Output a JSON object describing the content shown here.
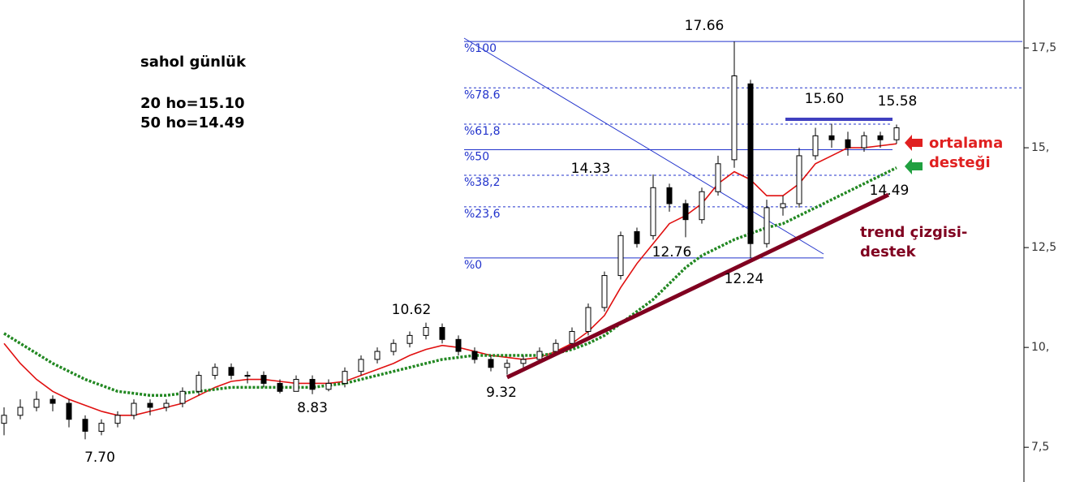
{
  "chart_data": {
    "type": "candlestick",
    "title": "sahol günlük",
    "notes": [
      "20 ho=15.10",
      "50 ho=14.49"
    ],
    "open": [
      8.1,
      8.3,
      8.5,
      8.7,
      8.6,
      8.2,
      7.9,
      8.1,
      8.3,
      8.6,
      8.5,
      8.6,
      8.9,
      9.3,
      9.5,
      9.3,
      9.3,
      9.1,
      8.9,
      9.2,
      8.95,
      9.1,
      9.4,
      9.7,
      9.9,
      10.1,
      10.3,
      10.5,
      10.2,
      9.9,
      9.7,
      9.5,
      9.6,
      9.7,
      9.9,
      10.1,
      10.4,
      11.0,
      11.8,
      12.9,
      12.8,
      14.0,
      13.6,
      13.2,
      13.9,
      14.7,
      16.6,
      12.6,
      13.5,
      13.6,
      14.8,
      15.3,
      15.2,
      15.0,
      15.3,
      15.2
    ],
    "high": [
      8.5,
      8.7,
      8.9,
      8.8,
      8.7,
      8.3,
      8.2,
      8.4,
      8.7,
      8.7,
      8.7,
      9.0,
      9.4,
      9.6,
      9.6,
      9.4,
      9.4,
      9.2,
      9.3,
      9.3,
      9.2,
      9.5,
      9.8,
      10.0,
      10.2,
      10.4,
      10.62,
      10.6,
      10.3,
      10.0,
      9.8,
      9.7,
      9.8,
      10.0,
      10.2,
      10.5,
      11.1,
      11.9,
      12.9,
      13.0,
      14.33,
      14.1,
      13.7,
      14.0,
      14.8,
      17.66,
      16.7,
      13.7,
      13.8,
      15.0,
      15.5,
      15.6,
      15.4,
      15.4,
      15.4,
      15.58
    ],
    "low": [
      7.8,
      8.2,
      8.4,
      8.4,
      8.0,
      7.7,
      7.8,
      8.0,
      8.2,
      8.3,
      8.4,
      8.5,
      8.8,
      9.2,
      9.2,
      9.1,
      9.0,
      8.85,
      8.9,
      8.83,
      8.9,
      9.0,
      9.3,
      9.6,
      9.8,
      10.0,
      10.2,
      10.1,
      9.8,
      9.6,
      9.4,
      9.32,
      9.5,
      9.6,
      9.8,
      10.0,
      10.3,
      10.9,
      11.7,
      12.5,
      12.7,
      13.4,
      12.76,
      13.1,
      13.8,
      14.5,
      12.24,
      12.5,
      13.3,
      13.5,
      14.7,
      15.0,
      14.8,
      14.9,
      15.0,
      15.1
    ],
    "close": [
      8.3,
      8.5,
      8.7,
      8.6,
      8.2,
      7.9,
      8.1,
      8.3,
      8.6,
      8.5,
      8.6,
      8.9,
      9.3,
      9.5,
      9.3,
      9.3,
      9.1,
      8.9,
      9.2,
      8.95,
      9.1,
      9.4,
      9.7,
      9.9,
      10.1,
      10.3,
      10.5,
      10.2,
      9.9,
      9.7,
      9.5,
      9.6,
      9.7,
      9.9,
      10.1,
      10.4,
      11.0,
      11.8,
      12.8,
      12.6,
      14.0,
      13.6,
      13.2,
      13.9,
      14.6,
      16.8,
      12.6,
      13.5,
      13.6,
      14.8,
      15.3,
      15.2,
      15.0,
      15.3,
      15.2,
      15.5
    ],
    "up_color": "#ffffff",
    "down_color": "#000000",
    "ma_lines": [
      {
        "color": "#e01010",
        "values": [
          10.1,
          9.6,
          9.2,
          8.9,
          8.7,
          8.55,
          8.4,
          8.3,
          8.3,
          8.4,
          8.5,
          8.6,
          8.8,
          9.0,
          9.15,
          9.2,
          9.2,
          9.15,
          9.1,
          9.1,
          9.1,
          9.15,
          9.3,
          9.45,
          9.6,
          9.8,
          9.95,
          10.05,
          10.0,
          9.9,
          9.8,
          9.75,
          9.7,
          9.75,
          9.9,
          10.1,
          10.4,
          10.8,
          11.5,
          12.1,
          12.6,
          13.1,
          13.3,
          13.6,
          14.1,
          14.4,
          14.2,
          13.8,
          13.8,
          14.1,
          14.6,
          14.8,
          15.0,
          15.0,
          15.05,
          15.1
        ]
      },
      {
        "color": "#228822",
        "values": [
          10.35,
          10.1,
          9.85,
          9.6,
          9.4,
          9.2,
          9.05,
          8.9,
          8.85,
          8.8,
          8.8,
          8.85,
          8.9,
          8.95,
          9.0,
          9.0,
          9.0,
          9.0,
          9.0,
          9.0,
          9.05,
          9.1,
          9.2,
          9.3,
          9.4,
          9.5,
          9.6,
          9.7,
          9.75,
          9.8,
          9.8,
          9.8,
          9.8,
          9.8,
          9.85,
          9.95,
          10.1,
          10.3,
          10.6,
          10.9,
          11.2,
          11.6,
          12.0,
          12.3,
          12.5,
          12.7,
          12.85,
          13.0,
          13.1,
          13.3,
          13.5,
          13.7,
          13.9,
          14.1,
          14.3,
          14.5
        ]
      }
    ],
    "fib_levels": [
      {
        "value": 17.66,
        "label": "%100"
      },
      {
        "value": 16.5,
        "label": "%78.6"
      },
      {
        "value": 15.59,
        "label": "%61,8"
      },
      {
        "value": 14.95,
        "label": "%50"
      },
      {
        "value": 14.31,
        "label": "%38,2"
      },
      {
        "value": 13.52,
        "label": "%23,6"
      },
      {
        "value": 12.24,
        "label": "%0"
      }
    ],
    "fib_color": "#2233cc",
    "price_labels": [
      "17.66",
      "15.60",
      "15.58",
      "14.33",
      "12.76",
      "12.24",
      "14.49",
      "10.62",
      "9.32",
      "8.83",
      "7.70"
    ],
    "callouts": [
      [
        "ortalama",
        "desteği"
      ],
      [
        "trend çizgisi-",
        "destek"
      ]
    ],
    "ylim": [
      6.63,
      18.7
    ],
    "yticks": [
      {
        "value": 17.5,
        "label": "17,5"
      },
      {
        "value": 15,
        "label": "15,"
      },
      {
        "value": 12.5,
        "label": "12,5"
      },
      {
        "value": 10,
        "label": "10,"
      },
      {
        "value": 7.5,
        "label": "7,5"
      }
    ]
  }
}
